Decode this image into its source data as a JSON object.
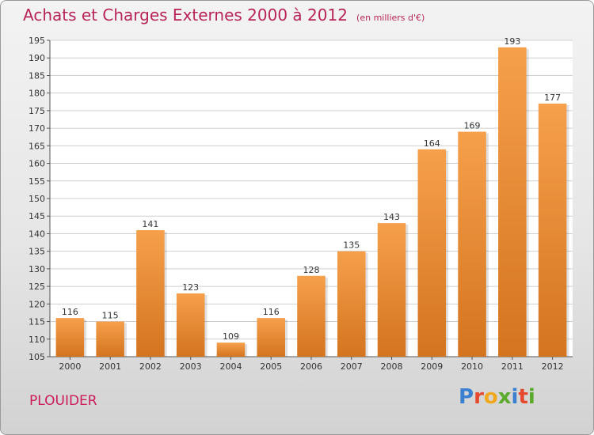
{
  "header": {
    "title": "Achats et Charges Externes 2000 à 2012",
    "unit": "(en milliers d'€)"
  },
  "commune": "PLOUIDER",
  "logo": {
    "text": "Proxiti",
    "letters": [
      {
        "char": "P",
        "color": "#3a7fd0"
      },
      {
        "char": "r",
        "color": "#e64a2e"
      },
      {
        "char": "o",
        "color": "#f2a81c"
      },
      {
        "char": "x",
        "color": "#5aaa2c"
      },
      {
        "char": "i",
        "color": "#3a7fd0"
      },
      {
        "char": "t",
        "color": "#e64a2e"
      },
      {
        "char": "i",
        "color": "#5aaa2c"
      }
    ]
  },
  "colors": {
    "title": "#b8245a",
    "bar_light": "#f6a04c",
    "bar_dark": "#d4741e",
    "grid": "#cfcfcf"
  },
  "chart_data": {
    "type": "bar",
    "title": "Achats et Charges Externes 2000 à 2012",
    "subtitle": "(en milliers d'€)",
    "xlabel": "",
    "ylabel": "",
    "categories": [
      "2000",
      "2001",
      "2002",
      "2003",
      "2004",
      "2005",
      "2006",
      "2007",
      "2008",
      "2009",
      "2010",
      "2011",
      "2012"
    ],
    "values": [
      116,
      115,
      141,
      123,
      109,
      116,
      128,
      135,
      143,
      164,
      169,
      193,
      177
    ],
    "ylim": [
      105,
      195
    ],
    "yticks": [
      105,
      110,
      115,
      120,
      125,
      130,
      135,
      140,
      145,
      150,
      155,
      160,
      165,
      170,
      175,
      180,
      185,
      190,
      195
    ],
    "grid": true,
    "legend": "none"
  }
}
